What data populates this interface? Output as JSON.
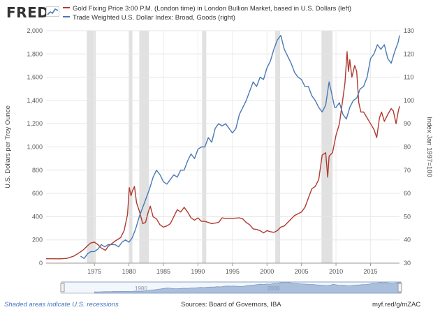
{
  "logo": {
    "text": "FRED",
    "icon": "fred-chart-icon"
  },
  "legend": [
    {
      "label": "Gold Fixing Price 3:00 P.M. (London time) in London Bullion Market, based in U.S. Dollars (left)",
      "color": "#b03a2e"
    },
    {
      "label": "Trade Weighted U.S. Dollar Index: Broad, Goods (right)",
      "color": "#4a79b5"
    }
  ],
  "footer": {
    "note": "Shaded areas indicate U.S. recessions",
    "sources": "Sources: Board of Governors, IBA",
    "url": "myf.red/g/mZAC"
  },
  "chart_data": {
    "type": "line",
    "title": "",
    "xlabel": "",
    "xlim": [
      1968,
      2019.2
    ],
    "x_ticks": [
      1975,
      1980,
      1985,
      1990,
      1995,
      2000,
      2005,
      2010,
      2015
    ],
    "left_axis": {
      "label": "U.S. Dollars per Troy Ounce",
      "range": [
        0,
        2000
      ],
      "ticks": [
        0,
        200,
        400,
        600,
        800,
        1000,
        1200,
        1400,
        1600,
        1800,
        2000
      ],
      "tick_labels": [
        "0",
        "200",
        "400",
        "600",
        "800",
        "1,000",
        "1,200",
        "1,400",
        "1,600",
        "1,800",
        "2,000"
      ]
    },
    "right_axis": {
      "label": "Index Jan 1997=100",
      "range": [
        30,
        130
      ],
      "ticks": [
        30,
        40,
        50,
        60,
        70,
        80,
        90,
        100,
        110,
        120,
        130
      ]
    },
    "grid": true,
    "recessions": [
      [
        1973.9,
        1975.2
      ],
      [
        1980.0,
        1980.5
      ],
      [
        1981.5,
        1982.9
      ],
      [
        1990.6,
        1991.2
      ],
      [
        2001.2,
        2001.9
      ],
      [
        2007.9,
        2009.5
      ]
    ],
    "series": [
      {
        "name": "Gold Fixing Price 3:00 P.M. (London time) in London Bullion Market, based in U.S. Dollars",
        "axis": "left",
        "color": "#b03a2e",
        "x": [
          1968,
          1970,
          1971,
          1972,
          1973,
          1973.5,
          1974,
          1974.5,
          1975,
          1975.5,
          1976,
          1976.6,
          1977,
          1978,
          1978.8,
          1979.3,
          1979.8,
          1980.05,
          1980.3,
          1980.5,
          1980.8,
          1981.1,
          1981.5,
          1982.0,
          1982.4,
          1982.8,
          1983.1,
          1983.5,
          1984,
          1984.5,
          1985,
          1985.5,
          1986,
          1986.5,
          1987,
          1987.5,
          1988,
          1988.5,
          1989,
          1989.5,
          1990,
          1990.5,
          1991,
          1992,
          1993,
          1993.5,
          1994,
          1995,
          1996,
          1996.5,
          1997,
          1997.5,
          1998,
          1998.5,
          1999,
          1999.5,
          2000,
          2000.5,
          2001,
          2001.5,
          2002,
          2002.5,
          2003,
          2003.5,
          2004,
          2005,
          2005.5,
          2006,
          2006.5,
          2007,
          2007.5,
          2008,
          2008.5,
          2008.8,
          2009,
          2009.5,
          2010,
          2010.5,
          2011,
          2011.3,
          2011.6,
          2011.8,
          2012,
          2012.3,
          2012.7,
          2013,
          2013.3,
          2013.6,
          2014,
          2014.5,
          2015,
          2015.5,
          2015.9,
          2016.3,
          2016.6,
          2017,
          2017.5,
          2018,
          2018.3,
          2018.7,
          2019,
          2019.2
        ],
        "y": [
          38,
          37,
          41,
          60,
          97,
          120,
          150,
          175,
          180,
          160,
          130,
          110,
          145,
          190,
          220,
          280,
          420,
          650,
          580,
          620,
          660,
          520,
          450,
          340,
          350,
          440,
          490,
          400,
          380,
          330,
          310,
          320,
          340,
          400,
          460,
          440,
          480,
          440,
          390,
          370,
          390,
          360,
          360,
          340,
          350,
          390,
          385,
          385,
          390,
          380,
          350,
          330,
          295,
          290,
          280,
          260,
          280,
          270,
          265,
          280,
          310,
          320,
          350,
          380,
          410,
          440,
          480,
          560,
          640,
          660,
          720,
          930,
          950,
          740,
          920,
          950,
          1100,
          1200,
          1420,
          1550,
          1820,
          1650,
          1750,
          1600,
          1700,
          1650,
          1380,
          1300,
          1300,
          1250,
          1200,
          1150,
          1080,
          1250,
          1300,
          1220,
          1280,
          1330,
          1310,
          1200,
          1300,
          1350
        ]
      },
      {
        "name": "Trade Weighted U.S. Dollar Index: Broad, Goods",
        "axis": "right",
        "color": "#4a79b5",
        "x": [
          1973.0,
          1973.5,
          1974,
          1974.5,
          1975,
          1975.5,
          1976,
          1976.5,
          1977,
          1978,
          1978.5,
          1979,
          1979.5,
          1980,
          1980.5,
          1981,
          1981.5,
          1982,
          1982.5,
          1983,
          1983.5,
          1984,
          1984.5,
          1985,
          1985.5,
          1986,
          1986.5,
          1987,
          1987.5,
          1988,
          1988.5,
          1989,
          1989.5,
          1990,
          1990.5,
          1991,
          1991.5,
          1992,
          1992.5,
          1993,
          1993.5,
          1994,
          1994.5,
          1995,
          1995.5,
          1996,
          1996.5,
          1997,
          1997.5,
          1998,
          1998.5,
          1999,
          1999.5,
          2000,
          2000.5,
          2001,
          2001.5,
          2002,
          2002.5,
          2003,
          2003.5,
          2004,
          2004.5,
          2005,
          2005.5,
          2006,
          2006.5,
          2007,
          2007.5,
          2008,
          2008.5,
          2009,
          2009.3,
          2009.8,
          2010,
          2010.5,
          2011,
          2011.5,
          2012,
          2012.5,
          2013,
          2013.5,
          2014,
          2014.5,
          2015,
          2015.5,
          2016,
          2016.5,
          2017,
          2017.5,
          2018,
          2018.5,
          2019,
          2019.2
        ],
        "y": [
          33,
          32,
          34,
          35,
          35,
          36,
          38,
          37,
          38,
          38,
          37,
          39,
          40,
          39,
          41,
          45,
          50,
          54,
          58,
          62,
          67,
          70,
          68,
          65,
          64,
          66,
          68,
          67,
          70,
          70,
          74,
          77,
          75,
          79,
          80,
          80,
          84,
          82,
          88,
          90,
          89,
          90,
          88,
          86,
          88,
          94,
          97,
          100,
          104,
          108,
          106,
          110,
          109,
          114,
          117,
          122,
          126,
          128,
          122,
          119,
          116,
          112,
          110,
          109,
          106,
          106,
          102,
          100,
          97,
          95,
          98,
          108,
          104,
          97,
          97,
          99,
          94,
          92,
          97,
          100,
          101,
          105,
          106,
          110,
          118,
          120,
          124,
          122,
          124,
          118,
          116,
          121,
          125,
          128
        ]
      }
    ]
  }
}
